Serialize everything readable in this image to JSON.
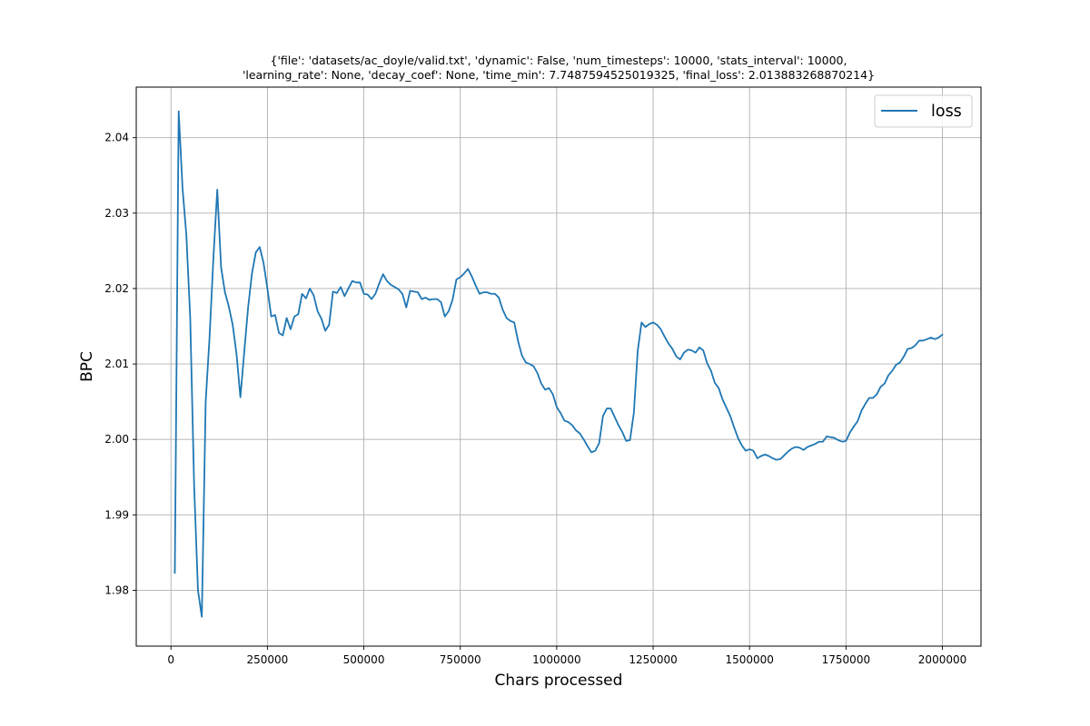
{
  "chart_data": {
    "type": "line",
    "title": "{'file': 'datasets/ac_doyle/valid.txt', 'dynamic': False, 'num_timesteps': 10000, 'stats_interval': 10000,\n'learning_rate': None, 'decay_coef': None, 'time_min': 7.7487594525019325, 'final_loss': 2.013883268870214}",
    "title_lines": [
      "{'file': 'datasets/ac_doyle/valid.txt', 'dynamic': False, 'num_timesteps': 10000, 'stats_interval': 10000,",
      "'learning_rate': None, 'decay_coef': None, 'time_min': 7.7487594525019325, 'final_loss': 2.013883268870214}"
    ],
    "xlabel": "Chars processed",
    "ylabel": "BPC",
    "xlim": [
      -90000,
      2100000
    ],
    "ylim": [
      1.9726,
      2.0467
    ],
    "xticks": [
      0,
      250000,
      500000,
      750000,
      1000000,
      1250000,
      1500000,
      1750000,
      2000000
    ],
    "xtick_labels": [
      "0",
      "250000",
      "500000",
      "750000",
      "1000000",
      "1250000",
      "1500000",
      "1750000",
      "2000000"
    ],
    "yticks": [
      1.98,
      1.99,
      2.0,
      2.01,
      2.02,
      2.03,
      2.04
    ],
    "ytick_labels": [
      "1.98",
      "1.99",
      "2.00",
      "2.01",
      "2.02",
      "2.03",
      "2.04"
    ],
    "grid": true,
    "legend": {
      "position": "top-right",
      "entries": [
        "loss"
      ]
    },
    "series": [
      {
        "name": "loss",
        "color": "#1f77b4",
        "x": [
          10000,
          20000,
          30000,
          40000,
          50000,
          60000,
          70000,
          80000,
          90000,
          100000,
          110000,
          120000,
          130000,
          140000,
          150000,
          160000,
          170000,
          180000,
          190000,
          200000,
          210000,
          220000,
          230000,
          240000,
          250000,
          260000,
          270000,
          280000,
          290000,
          300000,
          310000,
          320000,
          330000,
          340000,
          350000,
          360000,
          370000,
          380000,
          390000,
          400000,
          410000,
          420000,
          430000,
          440000,
          450000,
          460000,
          470000,
          480000,
          490000,
          500000,
          510000,
          520000,
          530000,
          540000,
          550000,
          560000,
          570000,
          580000,
          590000,
          600000,
          610000,
          620000,
          630000,
          640000,
          650000,
          660000,
          670000,
          680000,
          690000,
          700000,
          710000,
          720000,
          730000,
          740000,
          750000,
          760000,
          770000,
          780000,
          790000,
          800000,
          810000,
          820000,
          830000,
          840000,
          850000,
          860000,
          870000,
          880000,
          890000,
          900000,
          910000,
          920000,
          930000,
          940000,
          950000,
          960000,
          970000,
          980000,
          990000,
          1000000,
          1010000,
          1020000,
          1030000,
          1040000,
          1050000,
          1060000,
          1070000,
          1080000,
          1090000,
          1100000,
          1110000,
          1120000,
          1130000,
          1140000,
          1150000,
          1160000,
          1170000,
          1180000,
          1190000,
          1200000,
          1210000,
          1220000,
          1230000,
          1240000,
          1250000,
          1260000,
          1270000,
          1280000,
          1290000,
          1300000,
          1310000,
          1320000,
          1330000,
          1340000,
          1350000,
          1360000,
          1370000,
          1380000,
          1390000,
          1400000,
          1410000,
          1420000,
          1430000,
          1440000,
          1450000,
          1460000,
          1470000,
          1480000,
          1490000,
          1500000,
          1510000,
          1520000,
          1530000,
          1540000,
          1550000,
          1560000,
          1570000,
          1580000,
          1590000,
          1600000,
          1610000,
          1620000,
          1630000,
          1640000,
          1650000,
          1660000,
          1670000,
          1680000,
          1690000,
          1700000,
          1710000,
          1720000,
          1730000,
          1740000,
          1750000,
          1760000,
          1770000,
          1780000,
          1790000,
          1800000,
          1810000,
          1820000,
          1830000,
          1840000,
          1850000,
          1860000,
          1870000,
          1880000,
          1890000,
          1900000,
          1910000,
          1920000,
          1930000,
          1940000,
          1950000,
          1960000,
          1970000,
          1980000,
          1990000,
          2000000
        ],
        "y": [
          1.9823,
          2.0435,
          2.0333,
          2.027,
          2.016,
          1.994,
          1.98,
          1.9765,
          2.005,
          2.0135,
          2.024,
          2.0331,
          2.0228,
          2.0195,
          2.0176,
          2.0152,
          2.0113,
          2.0056,
          2.0116,
          2.0175,
          2.022,
          2.0248,
          2.0255,
          2.0234,
          2.02,
          2.0163,
          2.0165,
          2.0141,
          2.0138,
          2.0161,
          2.0146,
          2.0163,
          2.0166,
          2.0193,
          2.0187,
          2.02,
          2.0191,
          2.017,
          2.016,
          2.0144,
          2.0152,
          2.0196,
          2.0194,
          2.0202,
          2.019,
          2.02,
          2.021,
          2.0208,
          2.0208,
          2.0193,
          2.0192,
          2.0186,
          2.0193,
          2.0207,
          2.0219,
          2.021,
          2.0205,
          2.0202,
          2.0199,
          2.0193,
          2.0175,
          2.0197,
          2.0196,
          2.0195,
          2.0186,
          2.0188,
          2.0185,
          2.0186,
          2.0186,
          2.0182,
          2.0163,
          2.017,
          2.0185,
          2.0212,
          2.0215,
          2.022,
          2.0226,
          2.0216,
          2.0204,
          2.0193,
          2.0195,
          2.0195,
          2.0193,
          2.0193,
          2.0188,
          2.0172,
          2.0161,
          2.0157,
          2.0155,
          2.013,
          2.0111,
          2.0102,
          2.01,
          2.0097,
          2.0088,
          2.0074,
          2.0066,
          2.0068,
          2.006,
          2.0043,
          2.0035,
          2.0025,
          2.0023,
          2.0019,
          2.0012,
          2.0008,
          2.0,
          1.9991,
          1.9983,
          1.9985,
          1.9995,
          2.0031,
          2.0041,
          2.0041,
          2.003,
          2.0019,
          2.001,
          1.9998,
          1.9999,
          2.0035,
          2.0117,
          2.0155,
          2.0149,
          2.0153,
          2.0155,
          2.0152,
          2.0146,
          2.0136,
          2.0127,
          2.012,
          2.011,
          2.0106,
          2.0115,
          2.0119,
          2.0118,
          2.0115,
          2.0122,
          2.0118,
          2.0101,
          2.0091,
          2.0075,
          2.0068,
          2.0053,
          2.0042,
          2.0031,
          2.0016,
          2.0002,
          1.9992,
          1.9985,
          1.9987,
          1.9985,
          1.9975,
          1.9978,
          1.998,
          1.9978,
          1.9975,
          1.9973,
          1.9974,
          1.9979,
          1.9984,
          1.9988,
          1.999,
          1.9989,
          1.9986,
          1.999,
          1.9992,
          1.9994,
          1.9997,
          1.9997,
          2.0004,
          2.0003,
          2.0002,
          1.9999,
          1.9997,
          1.9998,
          2.0009,
          2.0017,
          2.0024,
          2.0038,
          2.0047,
          2.0055,
          2.0055,
          2.006,
          2.007,
          2.0074,
          2.0085,
          2.0091,
          2.0099,
          2.0102,
          2.011,
          2.012,
          2.0121,
          2.0125,
          2.0131,
          2.0131,
          2.0133,
          2.0135,
          2.0133,
          2.0135,
          2.0139
        ]
      }
    ]
  }
}
